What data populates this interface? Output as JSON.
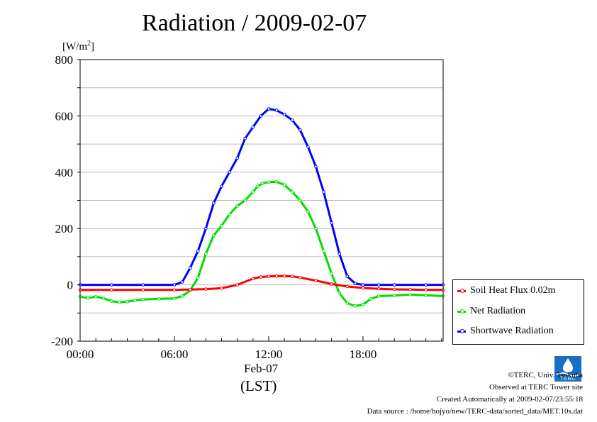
{
  "chart_data": {
    "type": "line",
    "title": "Radiation / 2009-02-07",
    "ylabel_unit": "[W/m",
    "ylabel_sup": "2",
    "ylabel_close": "]",
    "xlabel_date": "Feb-07",
    "xlabel_tz": "(LST)",
    "ylim": [
      -200,
      800
    ],
    "xlim": [
      0,
      23.1
    ],
    "yticks": [
      -200,
      0,
      200,
      400,
      600,
      800
    ],
    "ytick_labels": [
      "-200",
      "0",
      "200",
      "400",
      "600",
      "800"
    ],
    "xticks": [
      0,
      6,
      12,
      18
    ],
    "xtick_labels": [
      "00:00",
      "06:00",
      "12:00",
      "18:00"
    ],
    "grid": true,
    "legend_position": "right",
    "series": [
      {
        "name": "Soil Heat Flux 0.02m",
        "color": "#ff0000",
        "x": [
          0,
          2,
          4,
          6,
          7,
          8,
          9,
          10,
          11,
          11.5,
          12,
          12.5,
          13,
          13.5,
          14,
          15,
          16,
          17,
          18,
          19,
          20,
          21,
          22,
          23.1
        ],
        "y": [
          -18,
          -18,
          -18,
          -18,
          -17,
          -15,
          -12,
          0,
          22,
          28,
          30,
          31,
          31,
          30,
          26,
          15,
          3,
          -6,
          -11,
          -14,
          -16,
          -17,
          -18,
          -18
        ]
      },
      {
        "name": "Net Radiation",
        "color": "#00dd00",
        "x": [
          0,
          0.5,
          1,
          1.5,
          2,
          2.5,
          3,
          3.5,
          4,
          5,
          6,
          6.5,
          7,
          7.5,
          8,
          8.5,
          9,
          9.5,
          10,
          10.5,
          11,
          11.3,
          11.6,
          12,
          12.5,
          13,
          13.5,
          14,
          14.5,
          15,
          15.5,
          16,
          16.5,
          17,
          17.5,
          18,
          18.5,
          19,
          20,
          21,
          22,
          23.1
        ],
        "y": [
          -42,
          -47,
          -42,
          -48,
          -58,
          -62,
          -60,
          -55,
          -52,
          -50,
          -48,
          -40,
          -20,
          25,
          110,
          175,
          210,
          250,
          280,
          300,
          330,
          350,
          360,
          365,
          366,
          355,
          330,
          300,
          260,
          200,
          120,
          40,
          -30,
          -65,
          -75,
          -70,
          -50,
          -40,
          -38,
          -35,
          -37,
          -40
        ]
      },
      {
        "name": "Shortwave Radiation",
        "color": "#0000ff",
        "x": [
          0,
          2,
          4,
          6,
          6.5,
          7,
          7.5,
          8,
          8.5,
          9,
          9.5,
          10,
          10.5,
          11,
          11.5,
          12,
          12.5,
          13,
          13.5,
          14,
          14.5,
          15,
          15.5,
          16,
          16.5,
          17,
          17.5,
          18,
          19,
          20,
          22,
          23.1
        ],
        "y": [
          0,
          0,
          0,
          0,
          10,
          60,
          120,
          200,
          290,
          350,
          400,
          450,
          520,
          560,
          600,
          625,
          620,
          605,
          585,
          550,
          490,
          420,
          330,
          220,
          110,
          30,
          5,
          0,
          0,
          0,
          0,
          0
        ]
      }
    ]
  },
  "credits": {
    "copyright": "©TERC, Univ. Tsukuba",
    "observed": "Observed at TERC Tower site",
    "created": "Created Automatically at 2009-02-07/23:55:18",
    "source": "Data source : /home/hojyo/new/TERC-data/sorted_data/MET.10s.dat",
    "logo_text": "TERC"
  }
}
